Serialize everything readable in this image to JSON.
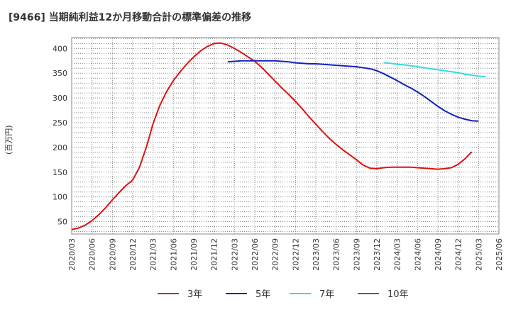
{
  "title": "[9466]  当期純利益12か月移動合計の標準偏差の推移",
  "chart_data": {
    "type": "line",
    "title": "[9466]  当期純利益12か月移動合計の標準偏差の推移",
    "ylabel": "(百万円)",
    "xlabel": "",
    "ylim": [
      25,
      422
    ],
    "yticks": [
      50,
      100,
      150,
      200,
      250,
      300,
      350,
      400
    ],
    "x_categories": [
      "2020/03",
      "2020/06",
      "2020/09",
      "2020/12",
      "2021/03",
      "2021/06",
      "2021/09",
      "2021/12",
      "2022/03",
      "2022/06",
      "2022/09",
      "2022/12",
      "2023/03",
      "2023/06",
      "2023/09",
      "2023/12",
      "2024/03",
      "2024/06",
      "2024/09",
      "2024/12",
      "2025/03",
      "2025/06"
    ],
    "grid": true,
    "legend_position": "bottom",
    "series": [
      {
        "name": "3年",
        "color": "#dd1111",
        "points": [
          {
            "t": 0,
            "v": 34
          },
          {
            "t": 1,
            "v": 37
          },
          {
            "t": 2,
            "v": 43
          },
          {
            "t": 3,
            "v": 52
          },
          {
            "t": 4,
            "v": 64
          },
          {
            "t": 5,
            "v": 78
          },
          {
            "t": 6,
            "v": 94
          },
          {
            "t": 7,
            "v": 109
          },
          {
            "t": 8,
            "v": 123
          },
          {
            "t": 9,
            "v": 134
          },
          {
            "t": 10,
            "v": 160
          },
          {
            "t": 11,
            "v": 200
          },
          {
            "t": 12,
            "v": 248
          },
          {
            "t": 13,
            "v": 285
          },
          {
            "t": 14,
            "v": 313
          },
          {
            "t": 15,
            "v": 335
          },
          {
            "t": 16,
            "v": 353
          },
          {
            "t": 17,
            "v": 369
          },
          {
            "t": 18,
            "v": 383
          },
          {
            "t": 19,
            "v": 395
          },
          {
            "t": 20,
            "v": 404
          },
          {
            "t": 21,
            "v": 410
          },
          {
            "t": 22,
            "v": 411
          },
          {
            "t": 23,
            "v": 407
          },
          {
            "t": 24,
            "v": 400
          },
          {
            "t": 25,
            "v": 392
          },
          {
            "t": 26,
            "v": 383
          },
          {
            "t": 27,
            "v": 374
          },
          {
            "t": 28,
            "v": 362
          },
          {
            "t": 29,
            "v": 348
          },
          {
            "t": 30,
            "v": 334
          },
          {
            "t": 31,
            "v": 320
          },
          {
            "t": 32,
            "v": 307
          },
          {
            "t": 33,
            "v": 293
          },
          {
            "t": 34,
            "v": 278
          },
          {
            "t": 35,
            "v": 262
          },
          {
            "t": 36,
            "v": 247
          },
          {
            "t": 37,
            "v": 232
          },
          {
            "t": 38,
            "v": 218
          },
          {
            "t": 39,
            "v": 206
          },
          {
            "t": 40,
            "v": 195
          },
          {
            "t": 41,
            "v": 185
          },
          {
            "t": 42,
            "v": 175
          },
          {
            "t": 43,
            "v": 164
          },
          {
            "t": 44,
            "v": 158
          },
          {
            "t": 45,
            "v": 157
          },
          {
            "t": 46,
            "v": 159
          },
          {
            "t": 47,
            "v": 160
          },
          {
            "t": 48,
            "v": 160
          },
          {
            "t": 49,
            "v": 160
          },
          {
            "t": 50,
            "v": 160
          },
          {
            "t": 51,
            "v": 159
          },
          {
            "t": 52,
            "v": 158
          },
          {
            "t": 53,
            "v": 157
          },
          {
            "t": 54,
            "v": 156
          },
          {
            "t": 55,
            "v": 157
          },
          {
            "t": 56,
            "v": 159
          },
          {
            "t": 57,
            "v": 166
          },
          {
            "t": 58,
            "v": 177
          },
          {
            "t": 59,
            "v": 191
          }
        ]
      },
      {
        "name": "5年",
        "color": "#1122bb",
        "points": [
          {
            "t": 23,
            "v": 373
          },
          {
            "t": 24,
            "v": 374
          },
          {
            "t": 25,
            "v": 375
          },
          {
            "t": 26,
            "v": 375
          },
          {
            "t": 27,
            "v": 375
          },
          {
            "t": 28,
            "v": 375
          },
          {
            "t": 29,
            "v": 375
          },
          {
            "t": 30,
            "v": 375
          },
          {
            "t": 31,
            "v": 374
          },
          {
            "t": 32,
            "v": 373
          },
          {
            "t": 33,
            "v": 371
          },
          {
            "t": 34,
            "v": 370
          },
          {
            "t": 35,
            "v": 369
          },
          {
            "t": 36,
            "v": 369
          },
          {
            "t": 37,
            "v": 368
          },
          {
            "t": 38,
            "v": 367
          },
          {
            "t": 39,
            "v": 366
          },
          {
            "t": 40,
            "v": 365
          },
          {
            "t": 41,
            "v": 364
          },
          {
            "t": 42,
            "v": 363
          },
          {
            "t": 43,
            "v": 361
          },
          {
            "t": 44,
            "v": 359
          },
          {
            "t": 45,
            "v": 355
          },
          {
            "t": 46,
            "v": 349
          },
          {
            "t": 47,
            "v": 342
          },
          {
            "t": 48,
            "v": 335
          },
          {
            "t": 49,
            "v": 327
          },
          {
            "t": 50,
            "v": 320
          },
          {
            "t": 51,
            "v": 312
          },
          {
            "t": 52,
            "v": 303
          },
          {
            "t": 53,
            "v": 293
          },
          {
            "t": 54,
            "v": 283
          },
          {
            "t": 55,
            "v": 274
          },
          {
            "t": 56,
            "v": 267
          },
          {
            "t": 57,
            "v": 261
          },
          {
            "t": 58,
            "v": 257
          },
          {
            "t": 59,
            "v": 254
          },
          {
            "t": 60,
            "v": 253
          }
        ]
      },
      {
        "name": "7年",
        "color": "#33dddd",
        "points": [
          {
            "t": 46,
            "v": 371
          },
          {
            "t": 47,
            "v": 370
          },
          {
            "t": 48,
            "v": 368
          },
          {
            "t": 49,
            "v": 367
          },
          {
            "t": 50,
            "v": 365
          },
          {
            "t": 51,
            "v": 363
          },
          {
            "t": 52,
            "v": 361
          },
          {
            "t": 53,
            "v": 359
          },
          {
            "t": 54,
            "v": 357
          },
          {
            "t": 55,
            "v": 355
          },
          {
            "t": 56,
            "v": 353
          },
          {
            "t": 57,
            "v": 351
          },
          {
            "t": 58,
            "v": 348
          },
          {
            "t": 59,
            "v": 346
          },
          {
            "t": 60,
            "v": 344
          },
          {
            "t": 61,
            "v": 343
          }
        ]
      },
      {
        "name": "10年",
        "color": "#228822",
        "points": []
      }
    ],
    "time_note": "t = months since 2020/03"
  }
}
